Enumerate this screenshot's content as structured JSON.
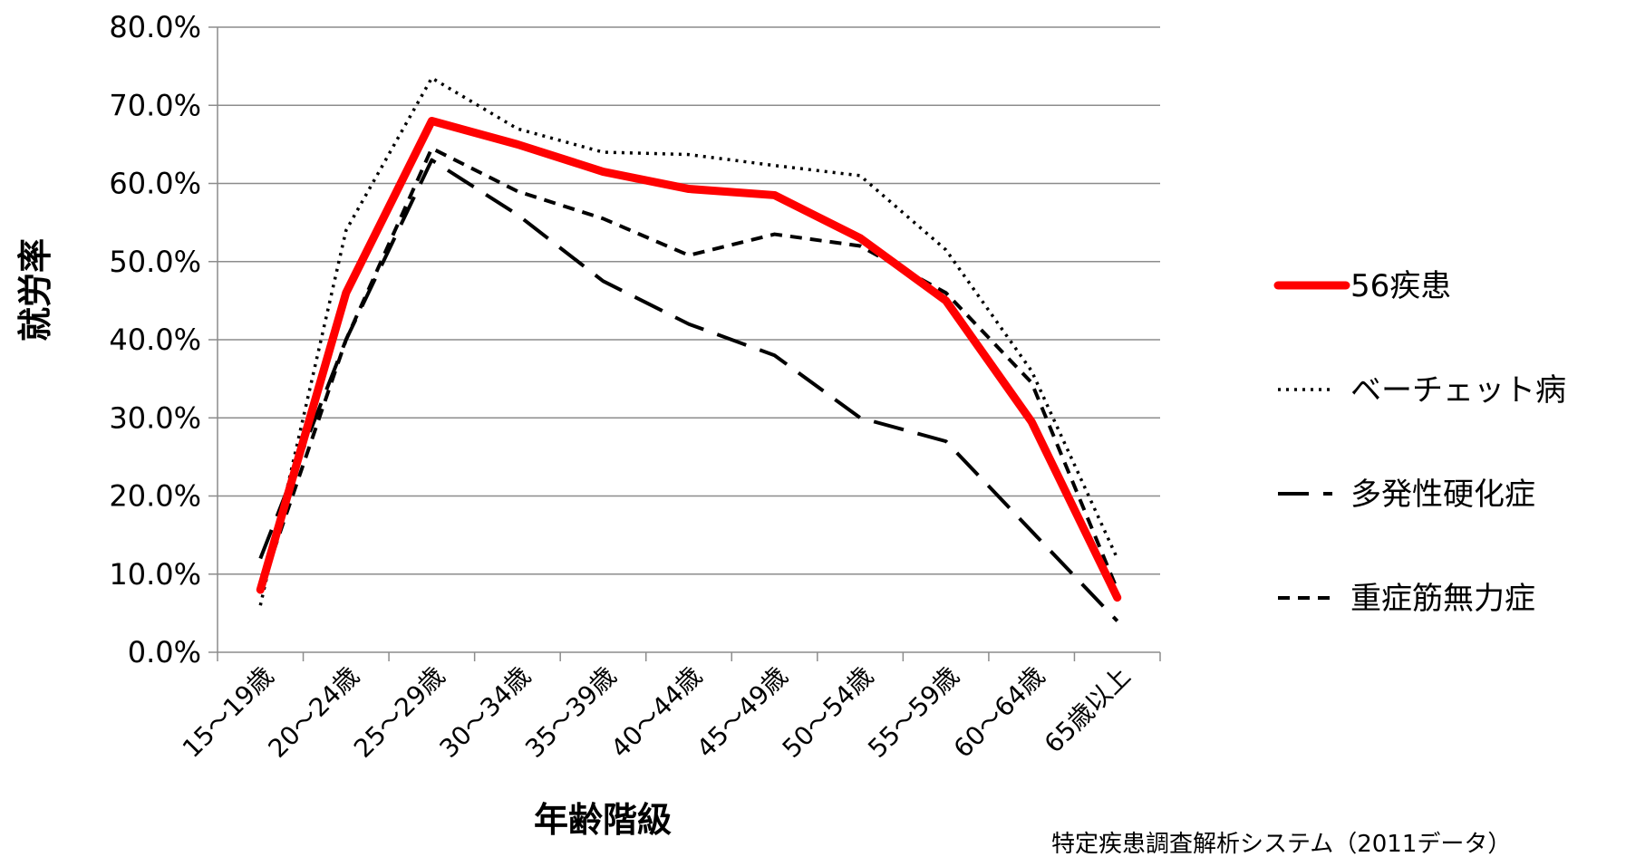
{
  "chart_data": {
    "type": "line",
    "xlabel": "年齢階級",
    "ylabel": "就労率",
    "ylim": [
      0,
      80
    ],
    "yticks": [
      "0.0%",
      "10.0%",
      "20.0%",
      "30.0%",
      "40.0%",
      "50.0%",
      "60.0%",
      "70.0%",
      "80.0%"
    ],
    "categories": [
      "15～19歳",
      "20～24歳",
      "25～29歳",
      "30～34歳",
      "35～39歳",
      "40～44歳",
      "45～49歳",
      "50～54歳",
      "55～59歳",
      "60～64歳",
      "65歳以上"
    ],
    "grid": true,
    "legend_position": "right",
    "series": [
      {
        "name": "56疾患",
        "style": "solid-thick",
        "color": "#ff0000",
        "values": [
          8.0,
          46.0,
          68.0,
          65.0,
          61.5,
          59.3,
          58.5,
          53.0,
          45.0,
          29.5,
          7.0
        ]
      },
      {
        "name": "ベーチェット病",
        "style": "dotted",
        "color": "#000000",
        "values": [
          6.0,
          54.0,
          73.5,
          67.0,
          64.0,
          63.7,
          62.3,
          61.0,
          51.5,
          36.0,
          12.0
        ]
      },
      {
        "name": "多発性硬化症",
        "style": "long-dash",
        "color": "#000000",
        "values": [
          12.0,
          40.0,
          63.0,
          56.0,
          47.5,
          42.0,
          38.0,
          30.0,
          27.0,
          15.5,
          4.0
        ]
      },
      {
        "name": "重症筋無力症",
        "style": "short-dash",
        "color": "#000000",
        "values": [
          8.0,
          40.0,
          64.5,
          59.0,
          55.5,
          50.8,
          53.5,
          52.0,
          46.0,
          34.5,
          8.0
        ]
      }
    ],
    "source_note": "特定疾患調査解析システム（2011データ）"
  }
}
